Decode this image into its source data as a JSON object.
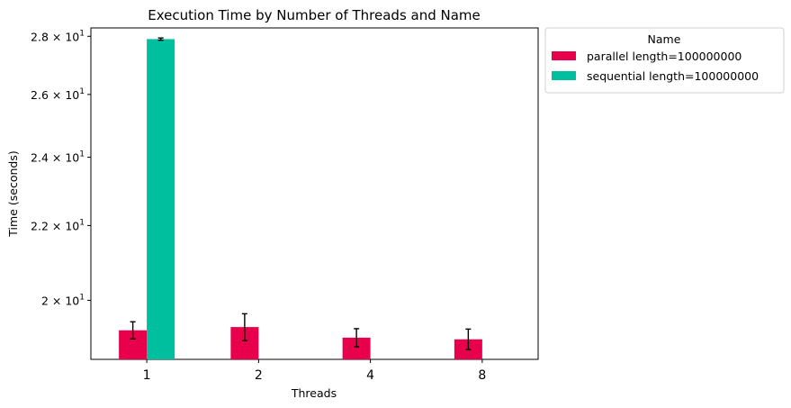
{
  "chart_data": {
    "type": "bar",
    "title": "Execution Time by Number of Threads and Name",
    "xlabel": "Threads",
    "ylabel": "Time (seconds)",
    "categories": [
      "1",
      "2",
      "4",
      "8"
    ],
    "yscale": "log",
    "ylim": [
      18.55,
      28.3
    ],
    "yticks": [
      {
        "value": 20,
        "base": "2",
        "exp": "1"
      },
      {
        "value": 22,
        "base": "2.2",
        "exp": "1"
      },
      {
        "value": 24,
        "base": "2.4",
        "exp": "1"
      },
      {
        "value": 26,
        "base": "2.6",
        "exp": "1"
      },
      {
        "value": 28,
        "base": "2.8",
        "exp": "1"
      }
    ],
    "series": [
      {
        "name": "parallel length=100000000",
        "color": "#e8004d",
        "values": [
          19.25,
          19.33,
          19.07,
          19.03
        ],
        "errors": [
          0.21,
          0.33,
          0.22,
          0.25
        ]
      },
      {
        "name": "sequential length=100000000",
        "color": "#00bf9f",
        "values": [
          27.9,
          null,
          null,
          null
        ],
        "errors": [
          0.04,
          null,
          null,
          null
        ]
      }
    ],
    "legend": {
      "title": "Name",
      "position": "outside-top-right"
    },
    "grid": false
  }
}
